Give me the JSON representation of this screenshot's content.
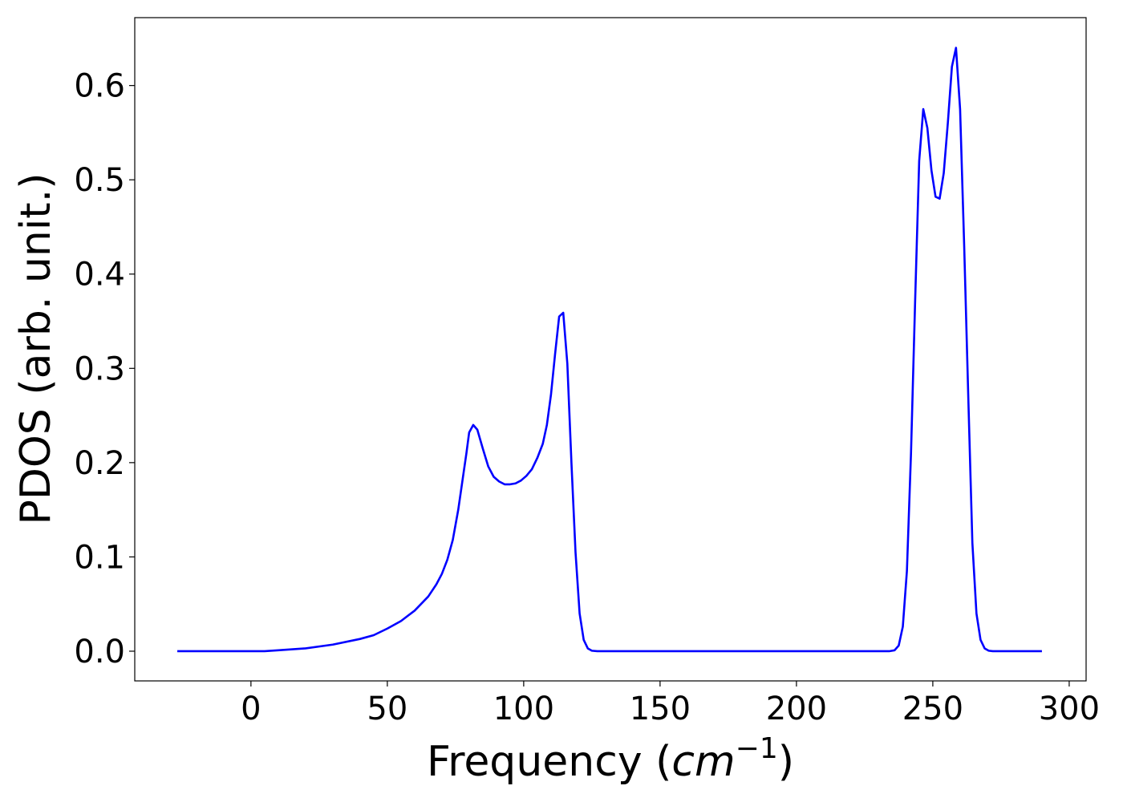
{
  "chart_data": {
    "type": "line",
    "xlabel": [
      "Frequency (",
      "cm",
      "−1",
      ")"
    ],
    "ylabel": "PDOS (arb. unit.)",
    "xlim": [
      -42.6,
      306.2
    ],
    "ylim": [
      -0.0315,
      0.672
    ],
    "xticks": [
      0,
      50,
      100,
      150,
      200,
      250,
      300
    ],
    "yticks": [
      {
        "value": 0,
        "label": "0.0"
      },
      0.1,
      0.2,
      0.3,
      0.4,
      0.5,
      0.6
    ],
    "grid": false,
    "x": [
      -27,
      5,
      10,
      20,
      30,
      40,
      45,
      50,
      55,
      60,
      65,
      68,
      70,
      72,
      74,
      76,
      78,
      79,
      80,
      81.5,
      83,
      85,
      87,
      89,
      91,
      93,
      95,
      97,
      99,
      101,
      103,
      105,
      107,
      108.5,
      110,
      111.5,
      113,
      114.5,
      116,
      117.5,
      119,
      120.5,
      122,
      123.5,
      125,
      127,
      234,
      236,
      237.5,
      239,
      240.5,
      242,
      243.5,
      245,
      246.5,
      248,
      249.5,
      251,
      252.5,
      254,
      255.5,
      257,
      258.5,
      260,
      261.5,
      263,
      264.5,
      266,
      267.5,
      269,
      270.5,
      272,
      290
    ],
    "series": [
      {
        "color": "#0000ff",
        "values": [
          0,
          0,
          0.001,
          0.003,
          0.007,
          0.013,
          0.017,
          0.024,
          0.032,
          0.043,
          0.058,
          0.071,
          0.082,
          0.097,
          0.118,
          0.15,
          0.19,
          0.21,
          0.232,
          0.24,
          0.235,
          0.215,
          0.196,
          0.185,
          0.18,
          0.177,
          0.177,
          0.178,
          0.181,
          0.186,
          0.193,
          0.205,
          0.22,
          0.24,
          0.272,
          0.315,
          0.355,
          0.359,
          0.305,
          0.2,
          0.105,
          0.04,
          0.012,
          0.003,
          0.0005,
          0,
          0,
          0.001,
          0.006,
          0.026,
          0.085,
          0.21,
          0.37,
          0.52,
          0.575,
          0.555,
          0.51,
          0.482,
          0.48,
          0.507,
          0.56,
          0.62,
          0.64,
          0.575,
          0.43,
          0.27,
          0.115,
          0.04,
          0.012,
          0.003,
          0.0005,
          0,
          0
        ]
      }
    ]
  }
}
